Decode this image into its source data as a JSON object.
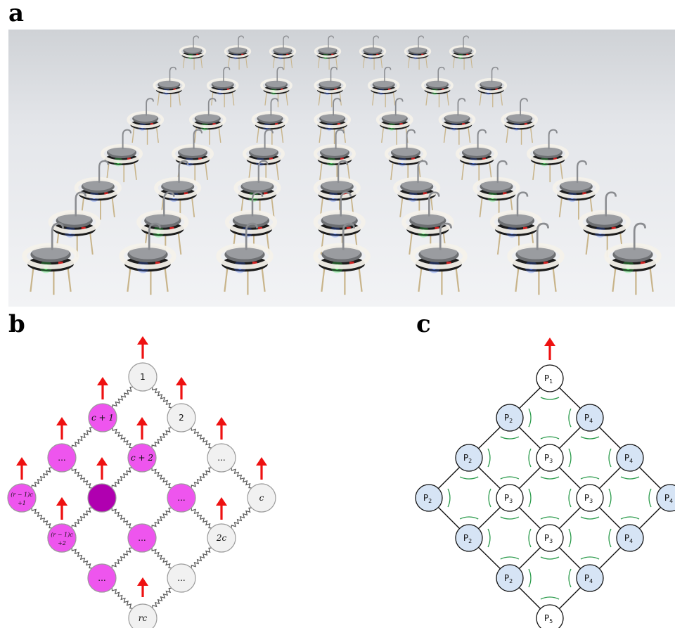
{
  "panels": {
    "a": {
      "letter": "a"
    },
    "b": {
      "letter": "b",
      "nodes": [
        {
          "id": "n1",
          "label": "1",
          "fill": "gray",
          "arrow": true
        },
        {
          "id": "n2",
          "label": "2",
          "fill": "gray",
          "arrow": true
        },
        {
          "id": "n3",
          "label": "...",
          "fill": "gray",
          "arrow": true
        },
        {
          "id": "nc",
          "label": "c",
          "fill": "gray",
          "arrow": true
        },
        {
          "id": "nc1",
          "label": "c + 1",
          "fill": "magenta",
          "arrow": true
        },
        {
          "id": "nc2",
          "label": "c + 2",
          "fill": "magenta",
          "arrow": true
        },
        {
          "id": "nm1",
          "label": "...",
          "fill": "magenta",
          "arrow": true
        },
        {
          "id": "nm2",
          "label": "...",
          "fill": "magenta",
          "arrow": false
        },
        {
          "id": "n2c",
          "label": "2c",
          "fill": "gray",
          "arrow": true
        },
        {
          "id": "nr1",
          "label": "(r − 1)c",
          "sub": "+1",
          "fill": "magenta",
          "arrow": true
        },
        {
          "id": "ncenter",
          "label": "",
          "fill": "dark-magenta",
          "arrow": true
        },
        {
          "id": "nm3",
          "label": "...",
          "fill": "magenta",
          "arrow": false
        },
        {
          "id": "nm4",
          "label": "...",
          "fill": "magenta",
          "arrow": true
        },
        {
          "id": "nr2",
          "label": "(r − 1)c",
          "sub": "+2",
          "fill": "magenta",
          "arrow": true
        },
        {
          "id": "ng",
          "label": "...",
          "fill": "gray",
          "arrow": false
        },
        {
          "id": "nm5",
          "label": "...",
          "fill": "magenta",
          "arrow": false
        },
        {
          "id": "nrc",
          "label": "rc",
          "fill": "gray",
          "arrow": true
        }
      ]
    },
    "c": {
      "letter": "c",
      "nodes": [
        {
          "id": "p1",
          "label": "P",
          "sub": "1",
          "fill": "white",
          "arrow": true
        },
        {
          "id": "p2a",
          "label": "P",
          "sub": "2",
          "fill": "blue"
        },
        {
          "id": "p4a",
          "label": "P",
          "sub": "4",
          "fill": "blue"
        },
        {
          "id": "p2b",
          "label": "P",
          "sub": "2",
          "fill": "blue"
        },
        {
          "id": "p3a",
          "label": "P",
          "sub": "3",
          "fill": "white"
        },
        {
          "id": "p4b",
          "label": "P",
          "sub": "4",
          "fill": "blue"
        },
        {
          "id": "p2c",
          "label": "P",
          "sub": "2",
          "fill": "blue"
        },
        {
          "id": "p3b",
          "label": "P",
          "sub": "3",
          "fill": "white"
        },
        {
          "id": "p3c",
          "label": "P",
          "sub": "3",
          "fill": "white"
        },
        {
          "id": "p4c",
          "label": "P",
          "sub": "4",
          "fill": "blue"
        },
        {
          "id": "p2d",
          "label": "P",
          "sub": "2",
          "fill": "blue"
        },
        {
          "id": "p3d",
          "label": "P",
          "sub": "3",
          "fill": "white"
        },
        {
          "id": "p4d",
          "label": "P",
          "sub": "4",
          "fill": "blue"
        },
        {
          "id": "p2e",
          "label": "P",
          "sub": "2",
          "fill": "blue"
        },
        {
          "id": "p4e",
          "label": "P",
          "sub": "4",
          "fill": "blue"
        },
        {
          "id": "p5",
          "label": "P",
          "sub": "5",
          "fill": "white"
        }
      ]
    }
  },
  "colors": {
    "arrow": "#ee1111",
    "gray_node": "#f1f1f1",
    "magenta_node": "#ee55ee",
    "dark_magenta_node": "#b000b0",
    "blue_node": "#d6e4f5",
    "spring": "#555555",
    "angle_arc": "#2a9a4a"
  }
}
